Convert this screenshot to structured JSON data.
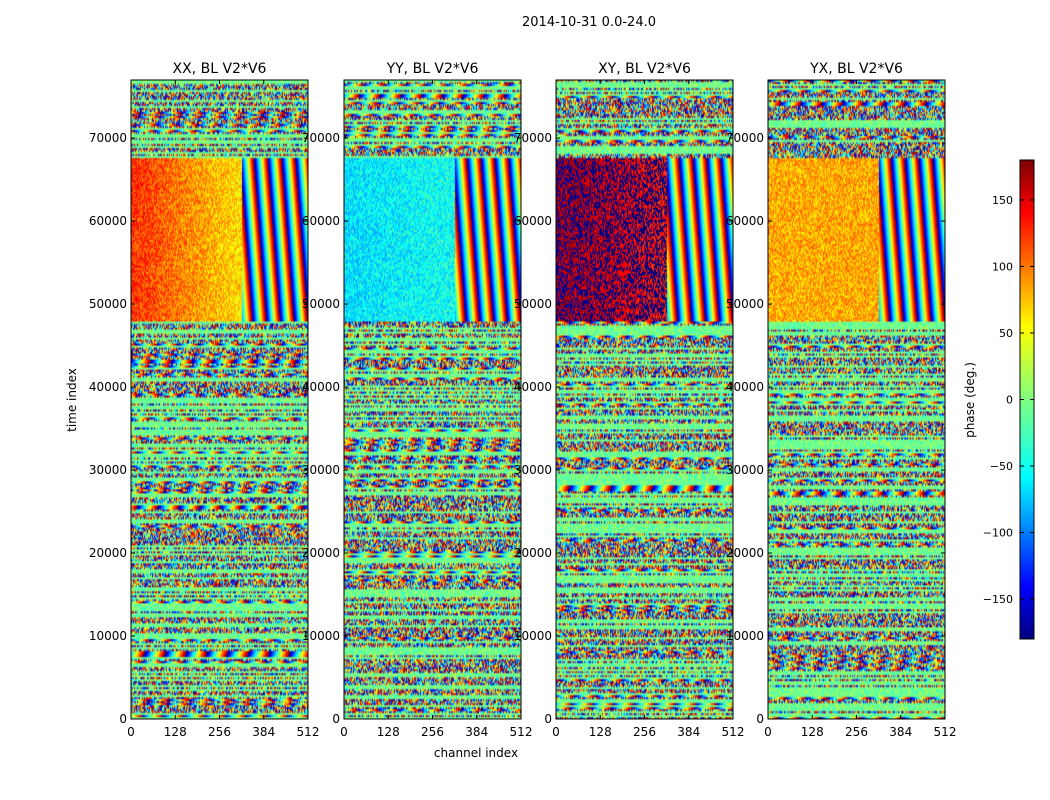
{
  "figure": {
    "suptitle": "2014-10-31 0.0-24.0",
    "xlabel": "channel index",
    "ylabel": "time index"
  },
  "colorbar": {
    "label": "phase (deg.)",
    "ticks": [
      150,
      100,
      50,
      0,
      -50,
      -100,
      -150
    ],
    "range": [
      -180,
      180
    ],
    "colormap": "jet",
    "colors": [
      "#00007f",
      "#0000ff",
      "#0080ff",
      "#00ffff",
      "#80ff80",
      "#ffff00",
      "#ff8000",
      "#ff0000",
      "#7f0000"
    ]
  },
  "chart_data": [
    {
      "type": "heatmap",
      "title": "XX, BL V2*V6",
      "x_ticks": [
        0,
        128,
        256,
        384,
        512
      ],
      "y_ticks": [
        0,
        10000,
        20000,
        30000,
        40000,
        50000,
        60000,
        70000
      ],
      "xlim": [
        0,
        512
      ],
      "ylim": [
        0,
        77000
      ],
      "coherent_block": {
        "x_range": [
          0,
          320
        ],
        "y_range": [
          48000,
          67500
        ],
        "phase_start": 120,
        "phase_end": 55
      },
      "fringe_region": {
        "x_range": [
          320,
          512
        ],
        "y_range": [
          48000,
          67500
        ]
      },
      "background_phase": -5
    },
    {
      "type": "heatmap",
      "title": "YY, BL V2*V6",
      "x_ticks": [
        0,
        128,
        256,
        384,
        512
      ],
      "y_ticks": [
        0,
        10000,
        20000,
        30000,
        40000,
        50000,
        60000,
        70000
      ],
      "xlim": [
        0,
        512
      ],
      "ylim": [
        0,
        77000
      ],
      "coherent_block": {
        "x_range": [
          0,
          320
        ],
        "y_range": [
          48000,
          67500
        ],
        "phase_start": -55,
        "phase_end": -40
      },
      "fringe_region": {
        "x_range": [
          320,
          512
        ],
        "y_range": [
          48000,
          67500
        ]
      },
      "background_phase": -5
    },
    {
      "type": "heatmap",
      "title": "XY, BL V2*V6",
      "x_ticks": [
        0,
        128,
        256,
        384,
        512
      ],
      "y_ticks": [
        0,
        10000,
        20000,
        30000,
        40000,
        50000,
        60000,
        70000
      ],
      "xlim": [
        0,
        512
      ],
      "ylim": [
        0,
        77000
      ],
      "coherent_block": {
        "x_range": [
          0,
          320
        ],
        "y_range": [
          48000,
          67500
        ],
        "phase_start": -170,
        "phase_end": 150
      },
      "fringe_region": {
        "x_range": [
          320,
          512
        ],
        "y_range": [
          48000,
          67500
        ]
      },
      "background_phase": -5
    },
    {
      "type": "heatmap",
      "title": "YX, BL V2*V6",
      "x_ticks": [
        0,
        128,
        256,
        384,
        512
      ],
      "y_ticks": [
        0,
        10000,
        20000,
        30000,
        40000,
        50000,
        60000,
        70000
      ],
      "xlim": [
        0,
        512
      ],
      "ylim": [
        0,
        77000
      ],
      "coherent_block": {
        "x_range": [
          0,
          320
        ],
        "y_range": [
          48000,
          67500
        ],
        "phase_start": 75,
        "phase_end": 75
      },
      "fringe_region": {
        "x_range": [
          320,
          512
        ],
        "y_range": [
          48000,
          67500
        ]
      },
      "background_phase": -5
    }
  ]
}
